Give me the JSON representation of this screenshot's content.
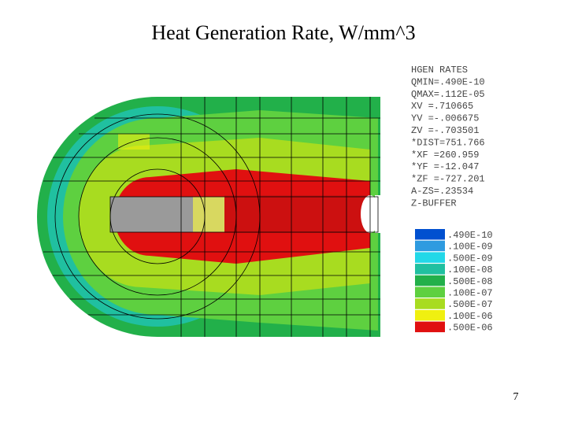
{
  "title": "Heat Generation Rate, W/mm^3",
  "info": [
    "HGEN RATES",
    "QMIN=.490E-10",
    "QMAX=.112E-05",
    "XV  =.710665",
    "YV  =-.006675",
    "ZV  =-.703501",
    "*DIST=751.766",
    "*XF  =260.959",
    "*YF  =-12.047",
    "*ZF  =-727.201",
    "A-ZS=.23534",
    "Z-BUFFER"
  ],
  "legend": [
    {
      "label": ".490E-10",
      "color": "#0050d0"
    },
    {
      "label": ".100E-09",
      "color": "#2e9be0"
    },
    {
      "label": ".500E-09",
      "color": "#22d8e8"
    },
    {
      "label": ".100E-08",
      "color": "#20c0a0"
    },
    {
      "label": ".500E-08",
      "color": "#22b04a"
    },
    {
      "label": ".100E-07",
      "color": "#5ed040"
    },
    {
      "label": ".500E-07",
      "color": "#a8dc20"
    },
    {
      "label": ".100E-06",
      "color": "#f0f010"
    },
    {
      "label": ".500E-06",
      "color": "#e01010"
    }
  ],
  "page_number": "7"
}
